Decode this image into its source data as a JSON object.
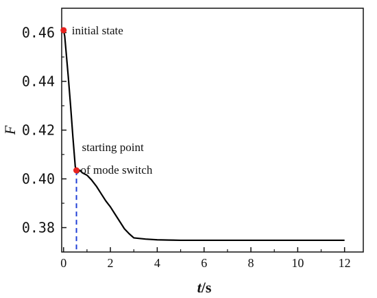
{
  "chart_data": {
    "type": "line",
    "title": "",
    "xlabel_bold": "t",
    "xlabel_rest": "/s",
    "ylabel": "F",
    "xlim": [
      0,
      12
    ],
    "ylim": [
      0.37,
      0.47
    ],
    "xticks": [
      0,
      2,
      4,
      6,
      8,
      10,
      12
    ],
    "yticks": [
      0.38,
      0.4,
      0.42,
      0.44,
      0.46
    ],
    "ytick_labels": [
      "0.38",
      "0.40",
      "0.42",
      "0.44",
      "0.46"
    ],
    "xtick_labels": [
      "0",
      "2",
      "4",
      "6",
      "8",
      "10",
      "12"
    ],
    "grid": false,
    "series": [
      {
        "color": "#000000",
        "x": [
          0,
          0.05,
          0.1,
          0.2,
          0.3,
          0.4,
          0.5,
          0.55,
          0.6,
          0.7,
          0.8,
          0.9,
          1.0,
          1.2,
          1.4,
          1.6,
          1.8,
          2.0,
          2.2,
          2.4,
          2.6,
          2.8,
          3.0,
          3.5,
          4.0,
          4.5,
          5.0,
          5.5,
          6.0,
          7.0,
          8.0,
          9.0,
          10.0,
          11.0,
          12.0
        ],
        "y": [
          0.461,
          0.4585,
          0.453,
          0.442,
          0.43,
          0.417,
          0.405,
          0.4035,
          0.4025,
          0.4035,
          0.4025,
          0.402,
          0.4015,
          0.3995,
          0.397,
          0.394,
          0.391,
          0.3885,
          0.3855,
          0.3825,
          0.3795,
          0.3775,
          0.3758,
          0.3753,
          0.375,
          0.3749,
          0.3748,
          0.3748,
          0.3748,
          0.3748,
          0.3748,
          0.3748,
          0.3748,
          0.3748,
          0.3748
        ]
      }
    ],
    "points": [
      {
        "x": 0,
        "y": 0.461,
        "color": "#e8231f",
        "label": "initial state"
      },
      {
        "x": 0.55,
        "y": 0.4035,
        "color": "#e8231f",
        "label_line1": "starting point",
        "label_line2": "of mode switch"
      }
    ],
    "marker_line": {
      "x": 0.55,
      "color": "#1f3fd6",
      "style": "dashed"
    }
  }
}
